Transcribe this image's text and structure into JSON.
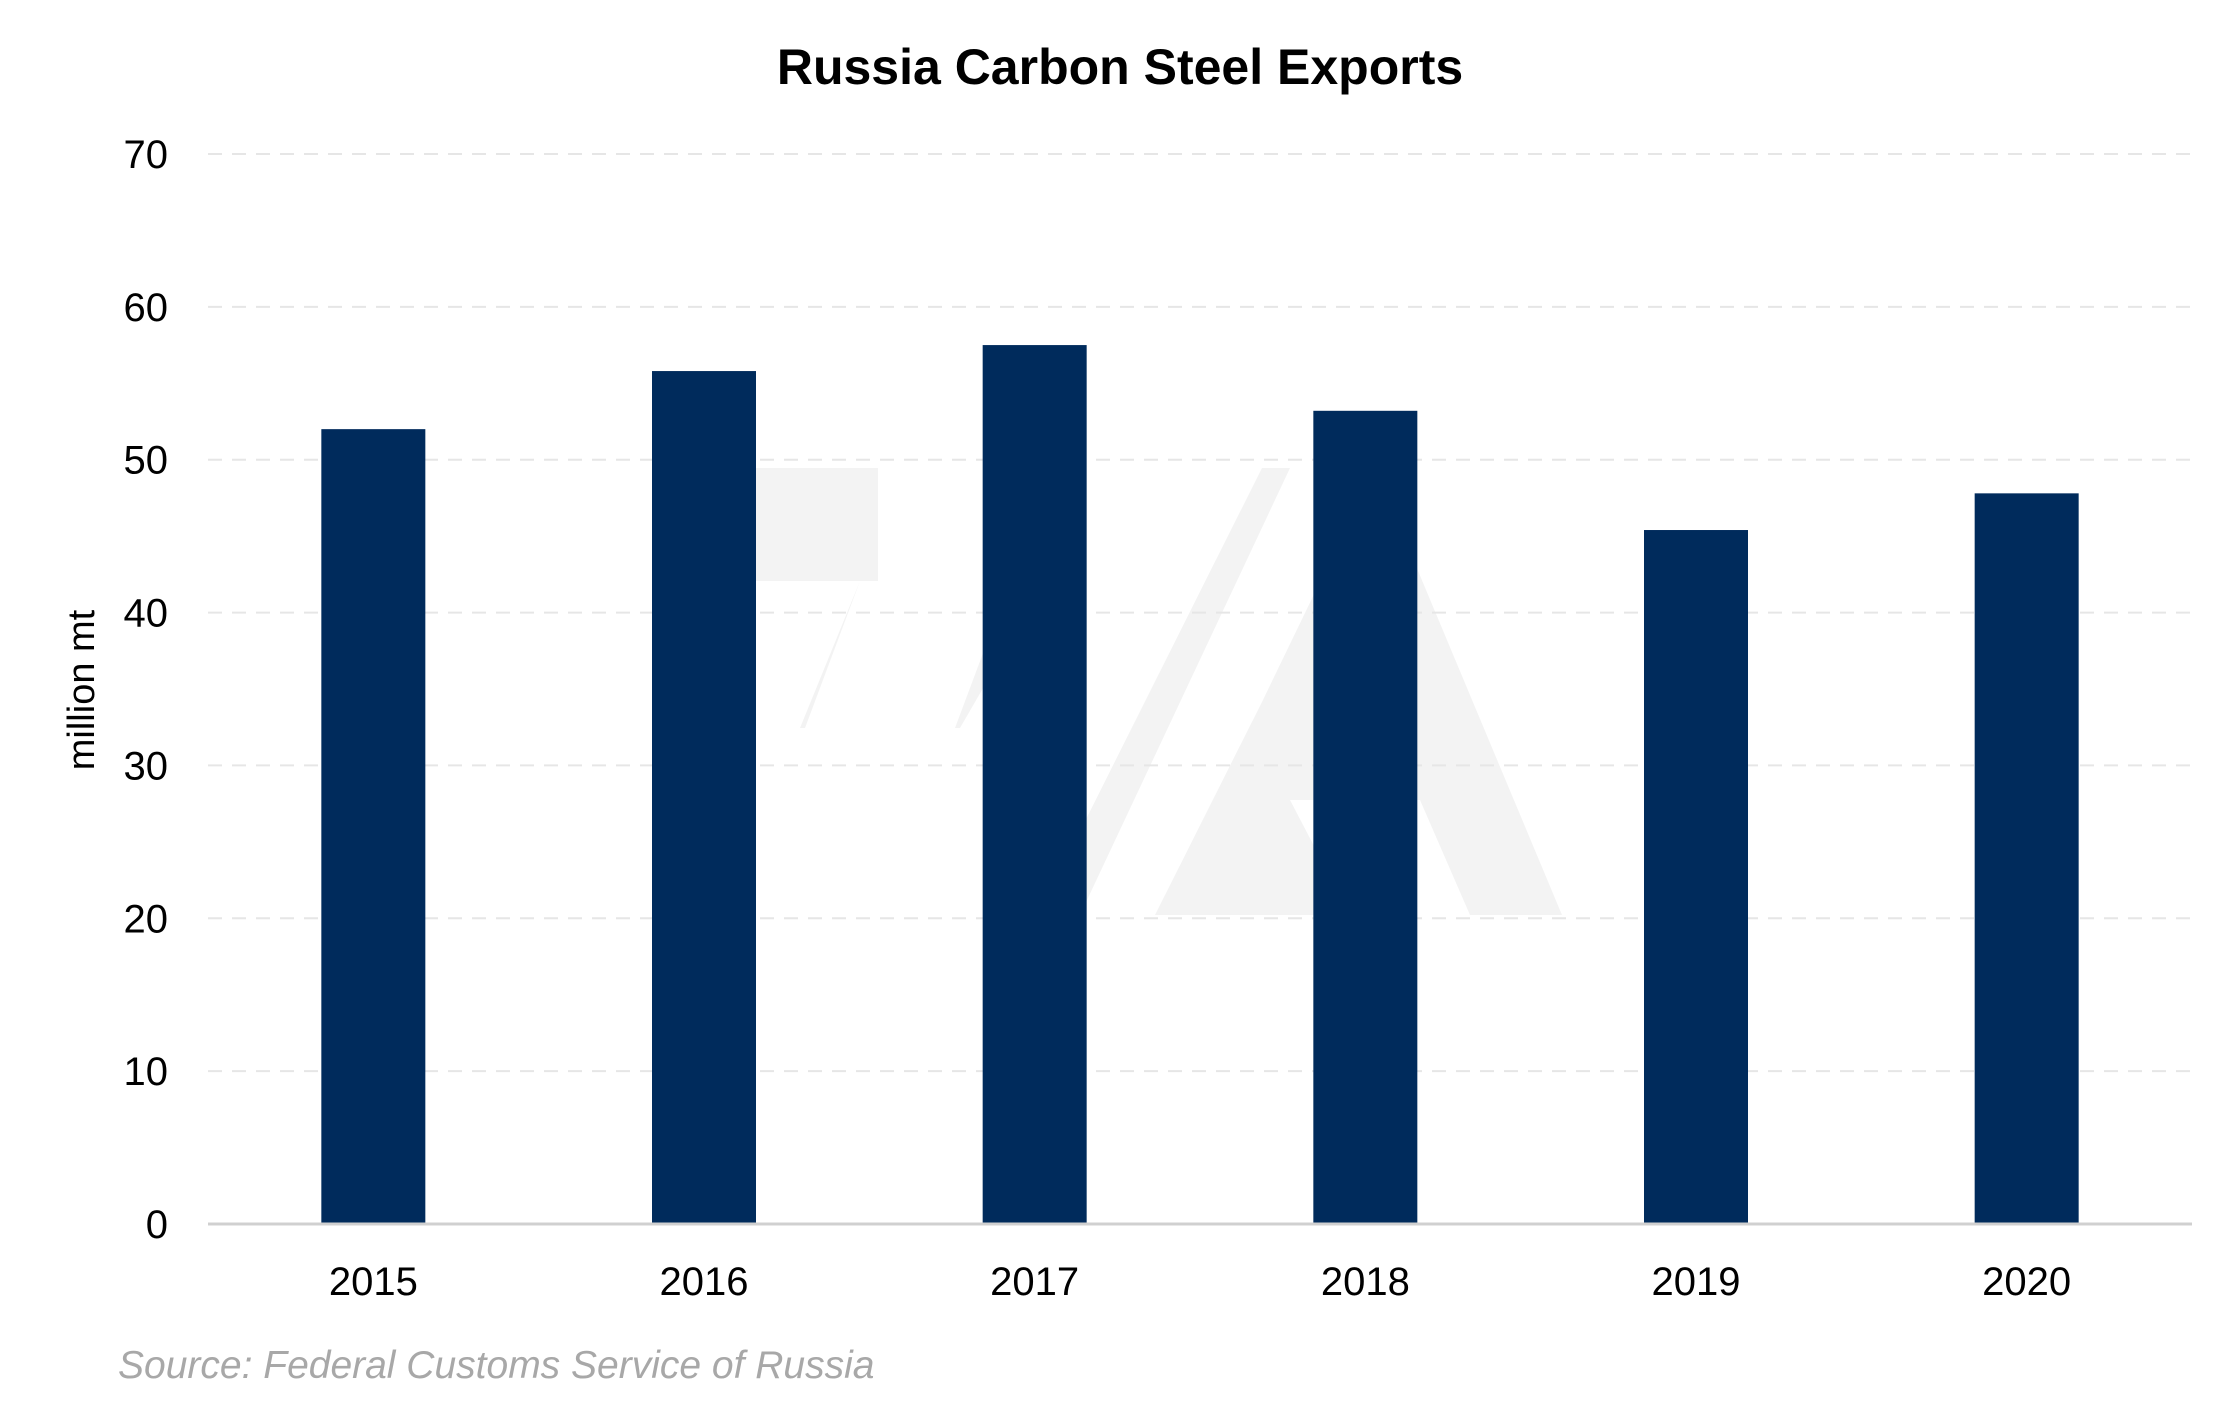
{
  "chart_data": {
    "type": "bar",
    "title": "Russia Carbon Steel Exports",
    "xlabel": "",
    "ylabel": "million mt",
    "categories": [
      "2015",
      "2016",
      "2017",
      "2018",
      "2019",
      "2020"
    ],
    "values": [
      52.0,
      55.8,
      57.5,
      53.2,
      45.4,
      47.8
    ],
    "ylim": [
      0,
      70
    ],
    "yticks": [
      "0",
      "10",
      "20",
      "30",
      "40",
      "50",
      "60",
      "70"
    ],
    "grid": true,
    "grid_style": "dashed",
    "legend": "none",
    "bar_color": "#002b5c",
    "grid_color": "#e6e6e6",
    "axis_color": "#d0d0d0",
    "source": "Source: Federal Customs Service of Russia"
  }
}
